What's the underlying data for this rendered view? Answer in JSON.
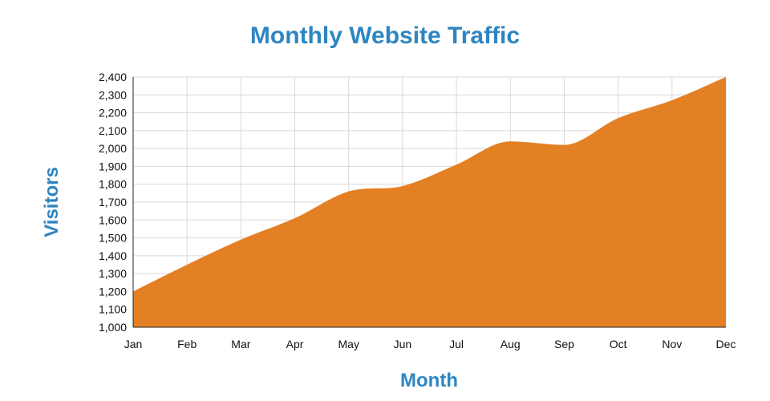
{
  "chart_data": {
    "type": "area",
    "title": "Monthly Website Traffic",
    "xlabel": "Month",
    "ylabel": "Visitors",
    "categories": [
      "Jan",
      "Feb",
      "Mar",
      "Apr",
      "May",
      "Jun",
      "Jul",
      "Aug",
      "Sep",
      "Oct",
      "Nov",
      "Dec"
    ],
    "series": [
      {
        "values": [
          1200,
          1350,
          1490,
          1610,
          1760,
          1790,
          1910,
          2040,
          2020,
          2170,
          2270,
          2400
        ]
      }
    ],
    "ylim": [
      1000,
      2400
    ],
    "yticks": [
      1000,
      1100,
      1200,
      1300,
      1400,
      1500,
      1600,
      1700,
      1800,
      1900,
      2000,
      2100,
      2200,
      2300,
      2400
    ],
    "ytick_labels": [
      "1,000",
      "1,100",
      "1,200",
      "1,300",
      "1,400",
      "1,500",
      "1,600",
      "1,700",
      "1,800",
      "1,900",
      "2,000",
      "2,100",
      "2,200",
      "2,300",
      "2,400"
    ],
    "grid": true,
    "legend": "none",
    "colors": {
      "area_fill": "#E48024",
      "title": "#2E86C1",
      "axis_title": "#2E86C1",
      "grid": "#D9D9D9",
      "axis": "#222222"
    }
  }
}
